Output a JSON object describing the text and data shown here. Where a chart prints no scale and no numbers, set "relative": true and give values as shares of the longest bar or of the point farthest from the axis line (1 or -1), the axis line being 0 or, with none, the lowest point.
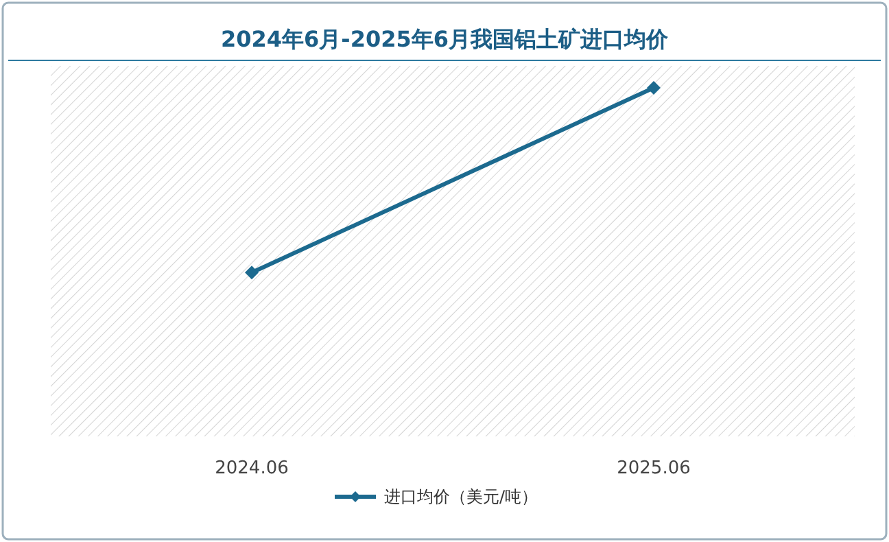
{
  "chart_data": {
    "type": "line",
    "title": "2024年6月-2025年6月我国铝土矿进口均价",
    "categories": [
      "2024.06",
      "2025.06"
    ],
    "relative": true,
    "series": [
      {
        "name": "进口均价（美元/吨）",
        "color": "#1c6a8f",
        "values": [
          0.47,
          1
        ]
      }
    ],
    "marker": "diamond",
    "legend": "bottom"
  }
}
